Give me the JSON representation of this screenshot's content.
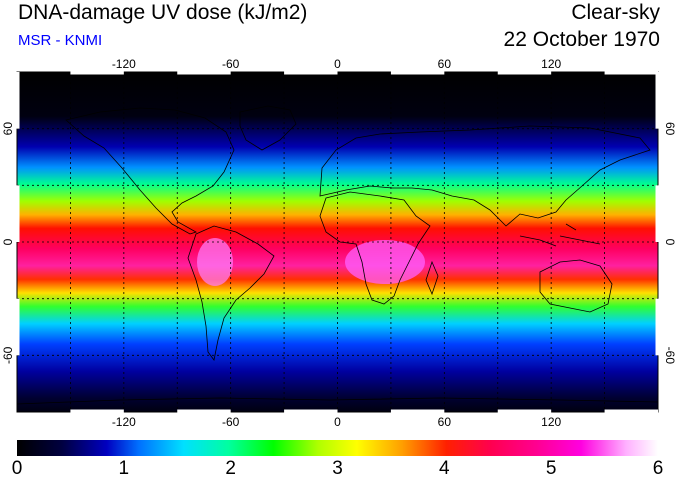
{
  "header": {
    "title": "DNA-damage UV dose (kJ/m2)",
    "subtitle": "MSR - KNMI",
    "condition": "Clear-sky",
    "date": "22 October 1970"
  },
  "map": {
    "lon_ticks": [
      -120,
      -60,
      0,
      60,
      120
    ],
    "lat_ticks": [
      60,
      0,
      -60
    ],
    "lat_tick_labels": [
      "60",
      "0",
      "-60"
    ],
    "lon_range": [
      -180,
      180
    ],
    "lat_range": [
      -90,
      90
    ],
    "grid": true,
    "colors": {
      "background": "#ffffff",
      "land_outline": "#000000",
      "grid": "#000000"
    }
  },
  "colorbar": {
    "labels": [
      "0",
      "1",
      "2",
      "3",
      "4",
      "5",
      "6"
    ],
    "range": [
      0,
      6
    ],
    "colors": [
      "#000000",
      "#0000c0",
      "#00e0ff",
      "#00ff00",
      "#ffff00",
      "#ff2000",
      "#ff00e0",
      "#ffffff"
    ]
  }
}
